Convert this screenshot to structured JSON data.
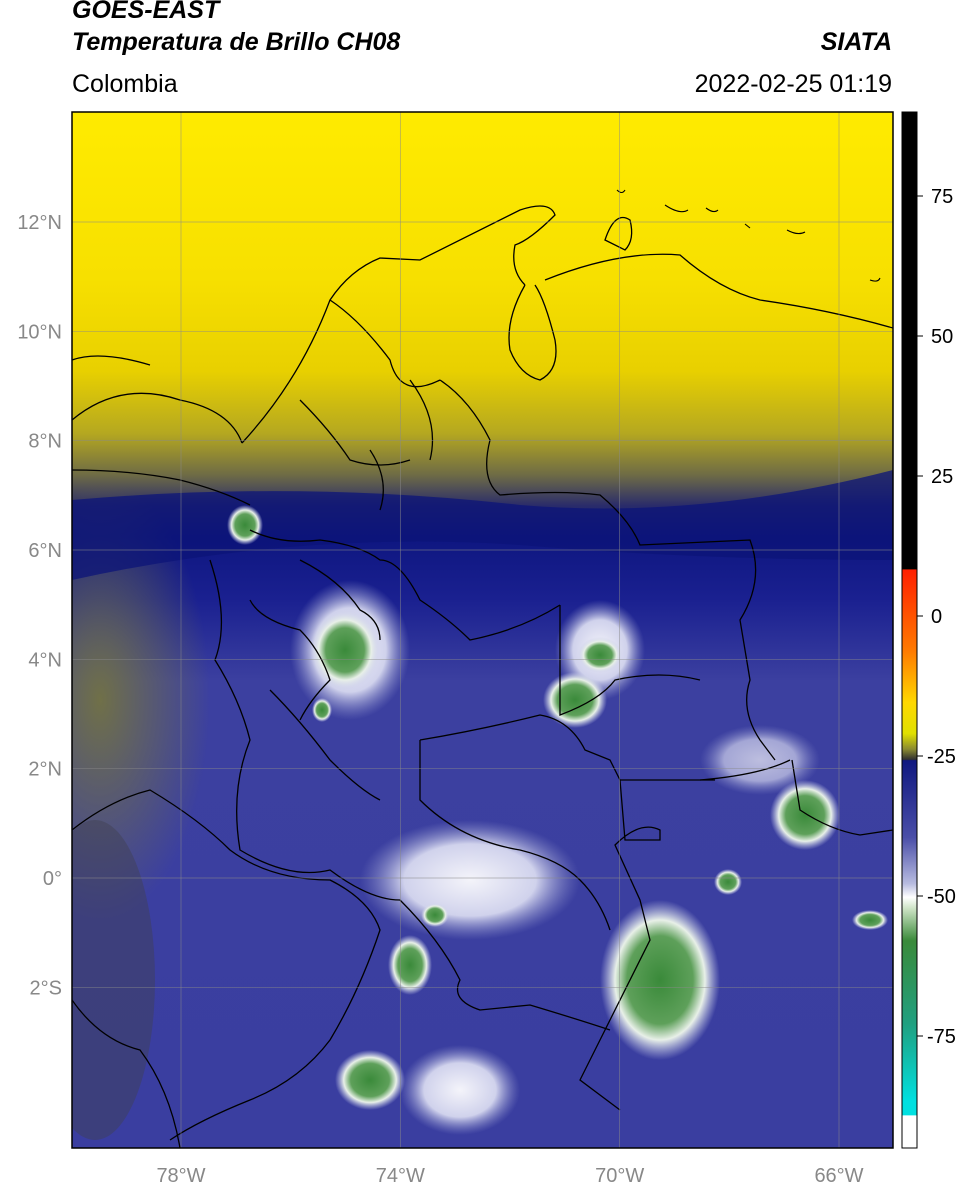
{
  "header": {
    "satellite": "GOES-EAST",
    "product": "Temperatura de Brillo CH08",
    "region": "Colombia",
    "organization": "SIATA",
    "datetime": "2022-02-25 01:19"
  },
  "map": {
    "lon_range": [
      -80,
      -65
    ],
    "lat_range": [
      -5,
      14
    ],
    "lat_ticks": [
      {
        "value": 12,
        "label": "12°N"
      },
      {
        "value": 10,
        "label": "10°N"
      },
      {
        "value": 8,
        "label": "8°N"
      },
      {
        "value": 6,
        "label": "6°N"
      },
      {
        "value": 4,
        "label": "4°N"
      },
      {
        "value": 2,
        "label": "2°N"
      },
      {
        "value": 0,
        "label": "0°"
      },
      {
        "value": -2,
        "label": "2°S"
      }
    ],
    "lon_ticks": [
      {
        "value": -78,
        "label": "78°W"
      },
      {
        "value": -74,
        "label": "74°W"
      },
      {
        "value": -70,
        "label": "70°W"
      },
      {
        "value": -66,
        "label": "66°W"
      }
    ],
    "grid": true,
    "colors": {
      "warm_yellow": "#ffe600",
      "olive": "#8a8a3a",
      "dark_navy": "#0a1478",
      "mid_blue": "#4a4ea8",
      "light_blue": "#9a9ed0",
      "cloud_white": "#f2f2f8",
      "cloud_green": "#3c8c3c",
      "border": "#000000"
    }
  },
  "colorbar": {
    "ticks": [
      {
        "value": 75,
        "label": "75"
      },
      {
        "value": 50,
        "label": "50"
      },
      {
        "value": 25,
        "label": "25"
      },
      {
        "value": 0,
        "label": "0"
      },
      {
        "value": -25,
        "label": "-25"
      },
      {
        "value": -50,
        "label": "-50"
      },
      {
        "value": -75,
        "label": "-75"
      }
    ],
    "range": [
      -95,
      90
    ]
  }
}
